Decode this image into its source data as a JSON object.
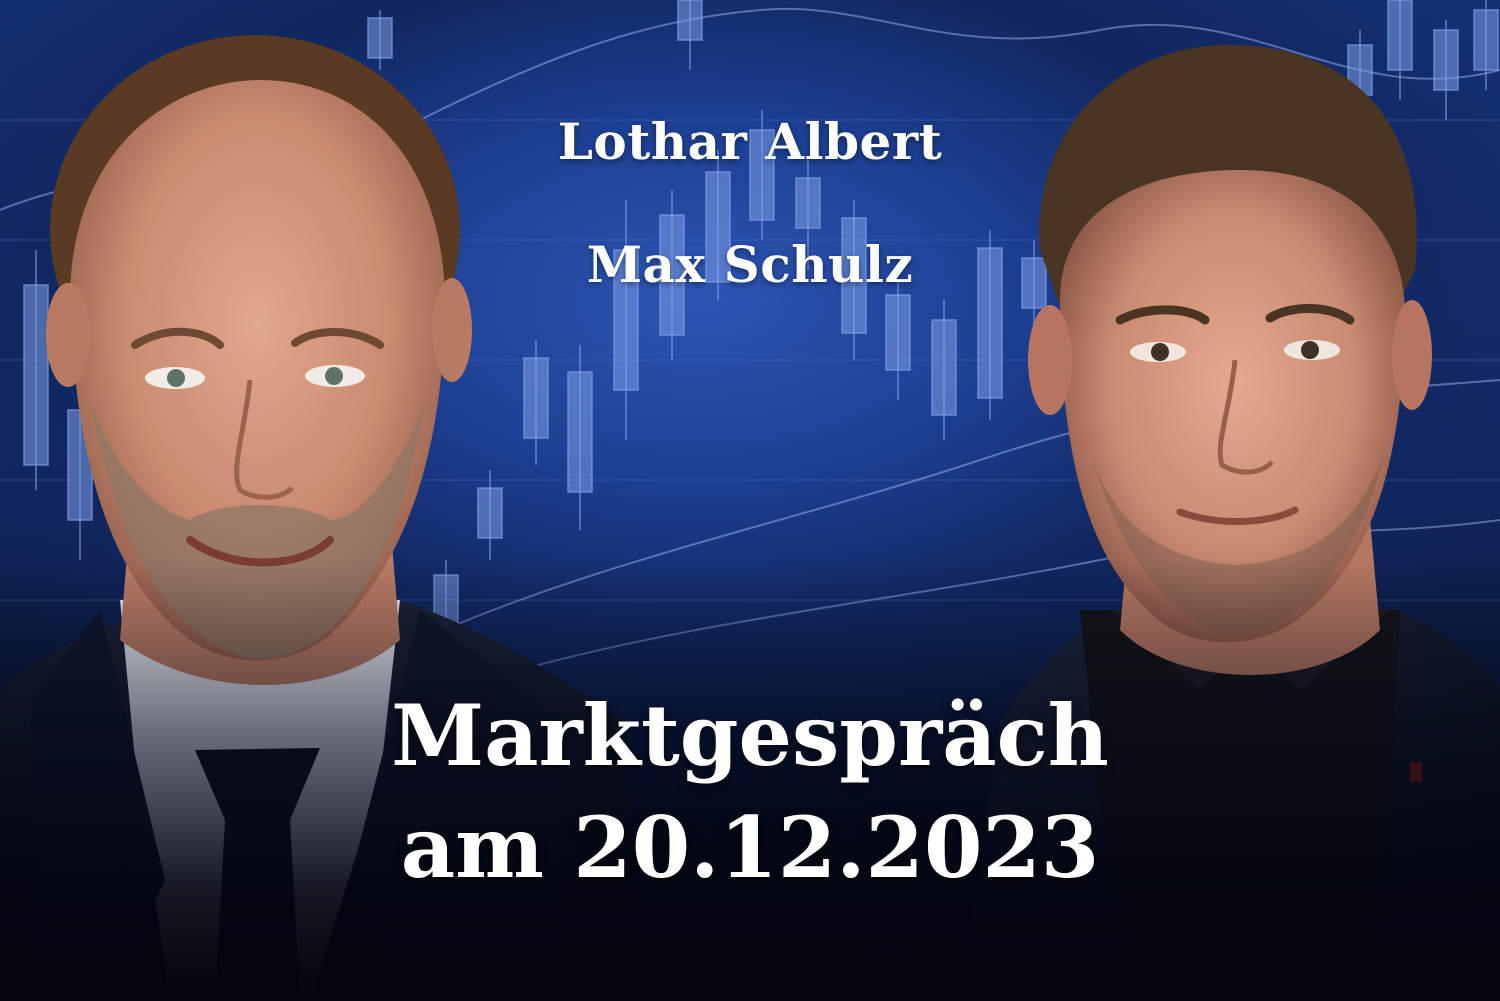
{
  "speakers": [
    {
      "name": "Lothar Albert"
    },
    {
      "name": "Max Schulz"
    }
  ],
  "headline": {
    "line1": "Marktgespräch",
    "line2": "am 20.12.2023"
  },
  "colors": {
    "background_blue": "#1d3f92",
    "candle_blue": "#7d9ee6",
    "text": "#ffffff"
  },
  "icons": [
    "candlestick-chart-background"
  ]
}
